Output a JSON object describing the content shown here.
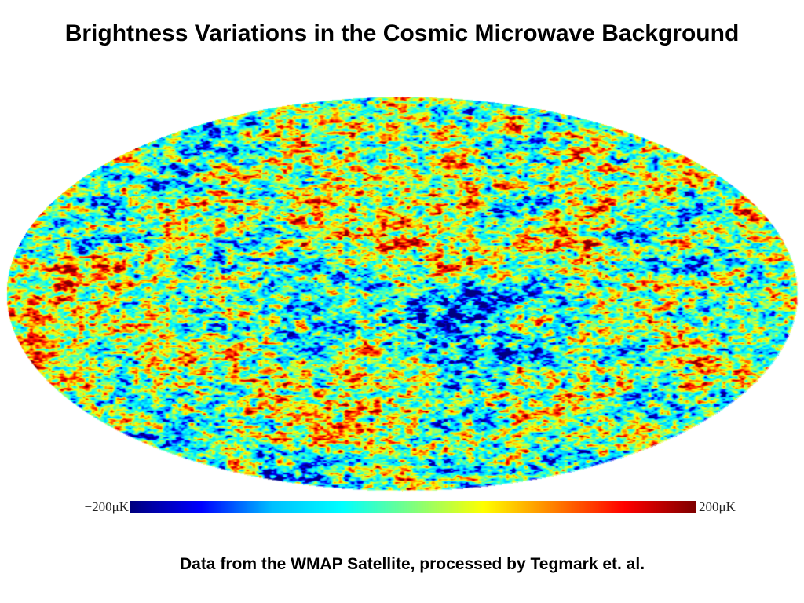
{
  "slide": {
    "title": "Brightness Variations in the Cosmic Microwave Background",
    "caption": "Data from the WMAP Satellite, processed by Tegmark et. al."
  },
  "sky_map": {
    "projection": "mollweide",
    "colormap": [
      "#000080",
      "#0000ff",
      "#00bfff",
      "#00ffff",
      "#7fff7f",
      "#ffff00",
      "#ff7f00",
      "#ff0000",
      "#800000"
    ]
  },
  "color_scale": {
    "min_label": "−200μK",
    "max_label": "200μK",
    "min_value": -200,
    "max_value": 200,
    "unit": "μK"
  }
}
